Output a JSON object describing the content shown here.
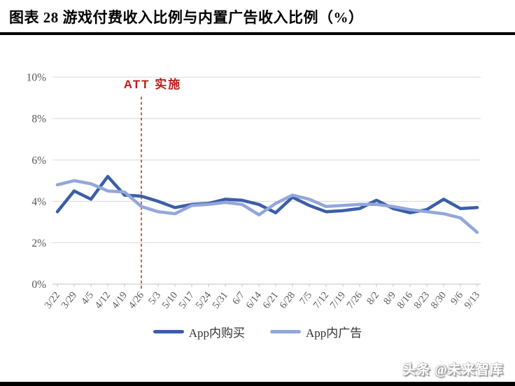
{
  "header": {
    "title": "图表 28 游戏付费收入比例与内置广告收入比例（%）"
  },
  "chart_data": {
    "type": "line",
    "title": "图表 28 游戏付费收入比例与内置广告收入比例（%）",
    "categories": [
      "3/22",
      "3/29",
      "4/5",
      "4/12",
      "4/19",
      "4/26",
      "5/3",
      "5/10",
      "5/17",
      "5/24",
      "5/31",
      "6/7",
      "6/14",
      "6/21",
      "6/28",
      "7/5",
      "7/12",
      "7/19",
      "7/26",
      "8/2",
      "8/9",
      "8/16",
      "8/23",
      "8/30",
      "9/6",
      "9/13"
    ],
    "series": [
      {
        "name": "App内购买",
        "color": "#3B5EA8",
        "values": [
          3.5,
          4.5,
          4.1,
          5.2,
          4.3,
          4.25,
          4.0,
          3.7,
          3.85,
          3.9,
          4.1,
          4.05,
          3.85,
          3.45,
          4.2,
          3.8,
          3.5,
          3.55,
          3.65,
          4.05,
          3.65,
          3.45,
          3.6,
          4.1,
          3.65,
          3.7
        ]
      },
      {
        "name": "App内广告",
        "color": "#92A7DB",
        "values": [
          4.8,
          5.0,
          4.85,
          4.5,
          4.45,
          3.75,
          3.5,
          3.4,
          3.8,
          3.85,
          3.95,
          3.85,
          3.35,
          3.9,
          4.3,
          4.1,
          3.75,
          3.8,
          3.85,
          3.85,
          3.75,
          3.6,
          3.5,
          3.4,
          3.2,
          2.5
        ]
      }
    ],
    "xlabel": "",
    "ylabel": "",
    "ylim": [
      0,
      10
    ],
    "ytick_values": [
      0,
      2,
      4,
      6,
      8,
      10
    ],
    "ytick_labels": [
      "0%",
      "2%",
      "4%",
      "6%",
      "8%",
      "10%"
    ],
    "grid": "horizontal",
    "legend_position": "bottom",
    "annotation": {
      "label": "ATT 实施",
      "category": "4/26",
      "text_color": "#BE1B1B",
      "line_color": "#D1493F"
    },
    "colors": {
      "gridline": "#D9D9D9",
      "axis_line": "#C6C6C6",
      "tick_text": "#595959"
    }
  },
  "footer": {
    "watermark": "头条 @未来智库"
  }
}
